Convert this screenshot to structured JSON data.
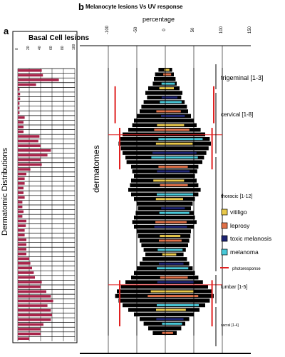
{
  "figure": {
    "panel_a_letter": "a",
    "panel_b_letter": "b",
    "panel_a_title": "Basal Cell lesions",
    "panel_b_title": "Melanocyte lesions Vs UV response",
    "y_axis_label": "Dermatomic Distributions",
    "dermatomes_label": "dermatomes"
  },
  "colors": {
    "bcc": "#a8244a",
    "vitiligo": "#e8c84a",
    "leprosy": "#e07048",
    "toxic_melanosis": "#1c2270",
    "melanoma": "#48c8d8",
    "photoresponse": "#e02020",
    "line": "#000000",
    "grid": "#000000"
  },
  "chart_data": [
    {
      "type": "bar",
      "orientation": "horizontal",
      "title": "Basal Cell lesions",
      "ylabel": "Dermatomic Distributions",
      "xlim": [
        0,
        100
      ],
      "tick_labels": [
        "0",
        "20",
        "40",
        "60",
        "80",
        "100"
      ],
      "category_count": 58,
      "values": [
        42,
        44,
        72,
        32,
        3,
        4,
        4,
        3,
        3,
        3,
        12,
        10,
        10,
        10,
        38,
        36,
        40,
        58,
        52,
        40,
        42,
        22,
        15,
        12,
        12,
        10,
        10,
        12,
        8,
        8,
        10,
        8,
        15,
        14,
        12,
        12,
        15,
        15,
        15,
        15,
        20,
        22,
        25,
        28,
        30,
        42,
        40,
        50,
        58,
        62,
        52,
        58,
        60,
        58,
        45,
        40,
        40,
        20
      ],
      "series_color_key": "bcc"
    },
    {
      "type": "bar",
      "orientation": "horizontal",
      "title": "Melanocyte lesions Vs UV response",
      "xlabel": "percentage",
      "ylabel": "dermatomes",
      "xlim": [
        -150,
        150
      ],
      "x_ticks": [
        -100,
        -50,
        0,
        50,
        100,
        150
      ],
      "tick_labels": [
        "-100",
        "-50",
        "0",
        "50",
        "100",
        "150"
      ],
      "regions": [
        {
          "label": "trigeminal [1-3]"
        },
        {
          "label": "cervical [1-8]"
        },
        {
          "label": "thoracic [1-12]"
        },
        {
          "label": "lumbar [1-5]"
        },
        {
          "label": "sacral [1-4]"
        }
      ],
      "legend": [
        {
          "name": "vitiligo",
          "color_key": "vitiligo",
          "kind": "box"
        },
        {
          "name": "leprosy",
          "color_key": "leprosy",
          "kind": "box"
        },
        {
          "name": "toxic melanosis",
          "color_key": "toxic_melanosis",
          "kind": "box"
        },
        {
          "name": "melanoma",
          "color_key": "melanoma",
          "kind": "box"
        },
        {
          "name": "photoresponse",
          "color_key": "photoresponse",
          "kind": "line"
        }
      ],
      "range_per_row": [
        [
          -12,
          12
        ],
        [
          -18,
          15
        ],
        [
          -20,
          18
        ],
        [
          -22,
          20
        ],
        [
          -30,
          25
        ],
        [
          -35,
          30
        ],
        [
          -32,
          28
        ],
        [
          -38,
          34
        ],
        [
          -42,
          38
        ],
        [
          -45,
          40
        ],
        [
          -50,
          45
        ],
        [
          -55,
          50
        ],
        [
          -58,
          55
        ],
        [
          -65,
          62
        ],
        [
          -75,
          70
        ],
        [
          -80,
          78
        ],
        [
          -82,
          80
        ],
        [
          -78,
          76
        ],
        [
          -75,
          72
        ],
        [
          -70,
          68
        ],
        [
          -68,
          65
        ],
        [
          -60,
          58
        ],
        [
          -58,
          56
        ],
        [
          -55,
          52
        ],
        [
          -60,
          55
        ],
        [
          -62,
          58
        ],
        [
          -65,
          62
        ],
        [
          -60,
          58
        ],
        [
          -55,
          52
        ],
        [
          -50,
          48
        ],
        [
          -48,
          45
        ],
        [
          -52,
          50
        ],
        [
          -55,
          52
        ],
        [
          -58,
          55
        ],
        [
          -55,
          50
        ],
        [
          -50,
          45
        ],
        [
          -48,
          44
        ],
        [
          -45,
          42
        ],
        [
          -42,
          40
        ],
        [
          -38,
          36
        ],
        [
          -35,
          32
        ],
        [
          -40,
          38
        ],
        [
          -45,
          42
        ],
        [
          -50,
          48
        ],
        [
          -55,
          52
        ],
        [
          -60,
          58
        ],
        [
          -70,
          66
        ],
        [
          -78,
          75
        ],
        [
          -85,
          82
        ],
        [
          -88,
          85
        ],
        [
          -82,
          78
        ],
        [
          -75,
          70
        ],
        [
          -65,
          60
        ],
        [
          -55,
          50
        ],
        [
          -45,
          42
        ],
        [
          -38,
          35
        ],
        [
          -30,
          28
        ],
        [
          -22,
          20
        ]
      ],
      "photoresponse_marks": [
        {
          "rows": [
            4,
            12
          ],
          "x": -88
        },
        {
          "rows": [
            4,
            12
          ],
          "x": 85
        },
        {
          "rows": [
            13,
            22
          ],
          "x": -80
        },
        {
          "rows": [
            13,
            22
          ],
          "x": 82
        },
        {
          "rows": [
            46,
            56
          ],
          "x": -80
        },
        {
          "rows": [
            46,
            56
          ],
          "x": 82
        }
      ]
    }
  ]
}
